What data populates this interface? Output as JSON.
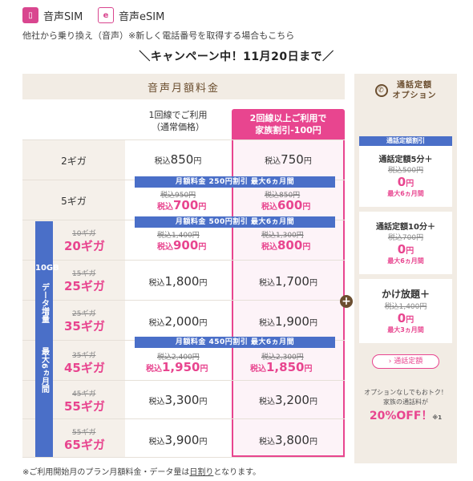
{
  "tabs": [
    {
      "label": "音声SIM",
      "icon": "sim-card-icon"
    },
    {
      "label": "音声eSIM",
      "icon": "esim-icon"
    }
  ],
  "top_note": "他社から乗り換え（音声）※新しく電話番号を取得する場合もこちら",
  "campaign": "＼キャンペーン中！11月20日まで／",
  "table": {
    "title": "音声月額料金",
    "col_normal": [
      "1回線でご利用",
      "（通常価格）"
    ],
    "col_family": [
      "2回線以上ご利用で",
      "家族割引-100円"
    ],
    "side_band": [
      "10GB",
      "データ増量",
      "最大6ヵ月間"
    ],
    "discount_bars": {
      "d250": "月額料金 250円割引 最大6ヵ月間",
      "d500": "月額料金 500円割引 最大6ヵ月間",
      "d450": "月額料金 450円割引 最大6ヵ月間"
    },
    "rows": [
      {
        "plan": "2ギガ",
        "normal": "850",
        "family": "750"
      },
      {
        "plan": "5ギガ",
        "normal_old": "税込950円",
        "normal": "700",
        "family_old": "税込850円",
        "family": "600"
      },
      {
        "plan_old": "10ギガ",
        "plan": "20ギガ",
        "normal_old": "税込1,400円",
        "normal": "900",
        "family_old": "税込1,300円",
        "family": "800"
      },
      {
        "plan_old": "15ギガ",
        "plan": "25ギガ",
        "normal": "1,800",
        "family": "1,700"
      },
      {
        "plan_old": "25ギガ",
        "plan": "35ギガ",
        "normal": "2,000",
        "family": "1,900"
      },
      {
        "plan_old": "35ギガ",
        "plan": "45ギガ",
        "normal_old": "税込2,400円",
        "normal": "1,950",
        "family_old": "税込2,300円",
        "family": "1,850"
      },
      {
        "plan_old": "45ギガ",
        "plan": "55ギガ",
        "normal": "3,300",
        "family": "3,200"
      },
      {
        "plan_old": "55ギガ",
        "plan": "65ギガ",
        "normal": "3,900",
        "family": "3,800"
      }
    ],
    "tax_prefix": "税込",
    "yen": "円"
  },
  "option": {
    "title": [
      "通話定額",
      "オプション"
    ],
    "blue_bar": "通話定額割引",
    "cards": [
      {
        "title": "通話定額5分＋",
        "old": "税込500円",
        "zero": "0",
        "note": "最大6ヵ月間"
      },
      {
        "title": "通話定額10分＋",
        "old": "税込700円",
        "zero": "0",
        "note": "最大6ヵ月間"
      },
      {
        "title": "かけ放題＋",
        "old": "税込1,400円",
        "zero": "0",
        "note": "最大3ヵ月間"
      }
    ],
    "button": "› 通話定額",
    "promo_line1": "オプションなしでもおトク！",
    "promo_line2": "家族の通話料が",
    "promo_big": "20%OFF！",
    "promo_mark": "※1"
  },
  "footer": {
    "prefix": "※ご利用開始月のプラン月額料金・データ量は",
    "underlined": "日割り",
    "suffix": "となります。"
  },
  "colors": {
    "accent_pink": "#e8458f",
    "accent_blue": "#4a6fc8",
    "beige": "#f2ece4",
    "brown": "#6b4e2f"
  }
}
